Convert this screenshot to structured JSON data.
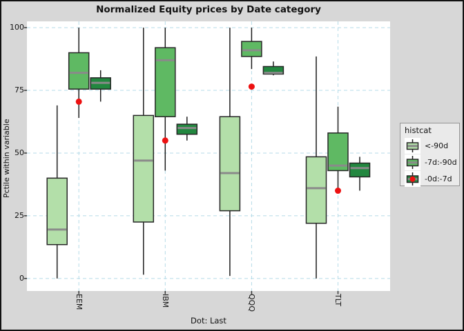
{
  "title": "Normalized Equity prices by Date category",
  "axes": {
    "ylabel": "Pctile within variable",
    "caption": "Dot: Last"
  },
  "legend": {
    "title": "histcat",
    "position": "right"
  },
  "chart_data": {
    "type": "boxplot",
    "title": "Normalized Equity prices by Date category",
    "ylabel": "Pctile within variable",
    "xlabel": "Dot: Last",
    "legend_title": "histcat",
    "legend_position": "right",
    "categories": [
      "EEM",
      "IBM",
      "QQQ",
      "TLT"
    ],
    "yticks": [
      0,
      25,
      50,
      75,
      100
    ],
    "ylim": [
      -5,
      102.5
    ],
    "grid": {
      "color": "#b5dbe8",
      "style": "dashed",
      "horizontal_at": [
        0,
        25,
        50,
        75,
        100
      ],
      "vertical_at_categories": true
    },
    "series": [
      {
        "name": "<-90d",
        "color": "#b3dfa9",
        "boxes": [
          {
            "category": "EEM",
            "whisker_low": 0,
            "q1": 13.5,
            "median": 19.5,
            "q3": 40,
            "whisker_high": 69
          },
          {
            "category": "IBM",
            "whisker_low": 1.5,
            "q1": 22.5,
            "median": 47,
            "q3": 65,
            "whisker_high": 100
          },
          {
            "category": "QQQ",
            "whisker_low": 1,
            "q1": 27,
            "median": 42,
            "q3": 64.5,
            "whisker_high": 100
          },
          {
            "category": "TLT",
            "whisker_low": 0,
            "q1": 22,
            "median": 36,
            "q3": 48.5,
            "whisker_high": 88.5
          }
        ]
      },
      {
        "name": "-7d:-90d",
        "color": "#5fb963",
        "boxes": [
          {
            "category": "EEM",
            "whisker_low": 64,
            "q1": 75.5,
            "median": 82,
            "q3": 90,
            "whisker_high": 100
          },
          {
            "category": "IBM",
            "whisker_low": 43,
            "q1": 64.5,
            "median": 87,
            "q3": 92,
            "whisker_high": 100
          },
          {
            "category": "QQQ",
            "whisker_low": 83.5,
            "q1": 88.5,
            "median": 91,
            "q3": 94.5,
            "whisker_high": 100
          },
          {
            "category": "TLT",
            "whisker_low": 36,
            "q1": 43,
            "median": 45,
            "q3": 58,
            "whisker_high": 68.5
          }
        ]
      },
      {
        "name": "-0d:-7d",
        "color": "#22873f",
        "boxes": [
          {
            "category": "EEM",
            "whisker_low": 70.5,
            "q1": 75.5,
            "median": 78,
            "q3": 80,
            "whisker_high": 83
          },
          {
            "category": "IBM",
            "whisker_low": 55,
            "q1": 57.5,
            "median": 60,
            "q3": 61.5,
            "whisker_high": 64.5
          },
          {
            "category": "QQQ",
            "whisker_low": 81,
            "q1": 81.5,
            "median": 82,
            "q3": 84.5,
            "whisker_high": 86.5
          },
          {
            "category": "TLT",
            "whisker_low": 35,
            "q1": 40.5,
            "median": 44,
            "q3": 46,
            "whisker_high": 48.5
          }
        ]
      }
    ],
    "last_dots": {
      "label": "Dot: Last",
      "color": "#ed1111",
      "values": {
        "EEM": 70.5,
        "IBM": 55,
        "QQQ": 76.5,
        "TLT": 35
      }
    },
    "style": {
      "median_color": "#8a8a8a",
      "box_border": "#262626",
      "whisker_color": "#1c1c1c",
      "panel_bg": "#ffffff",
      "figure_bg": "#d7d7d7",
      "gridline_color": "#b5dbe8"
    }
  }
}
